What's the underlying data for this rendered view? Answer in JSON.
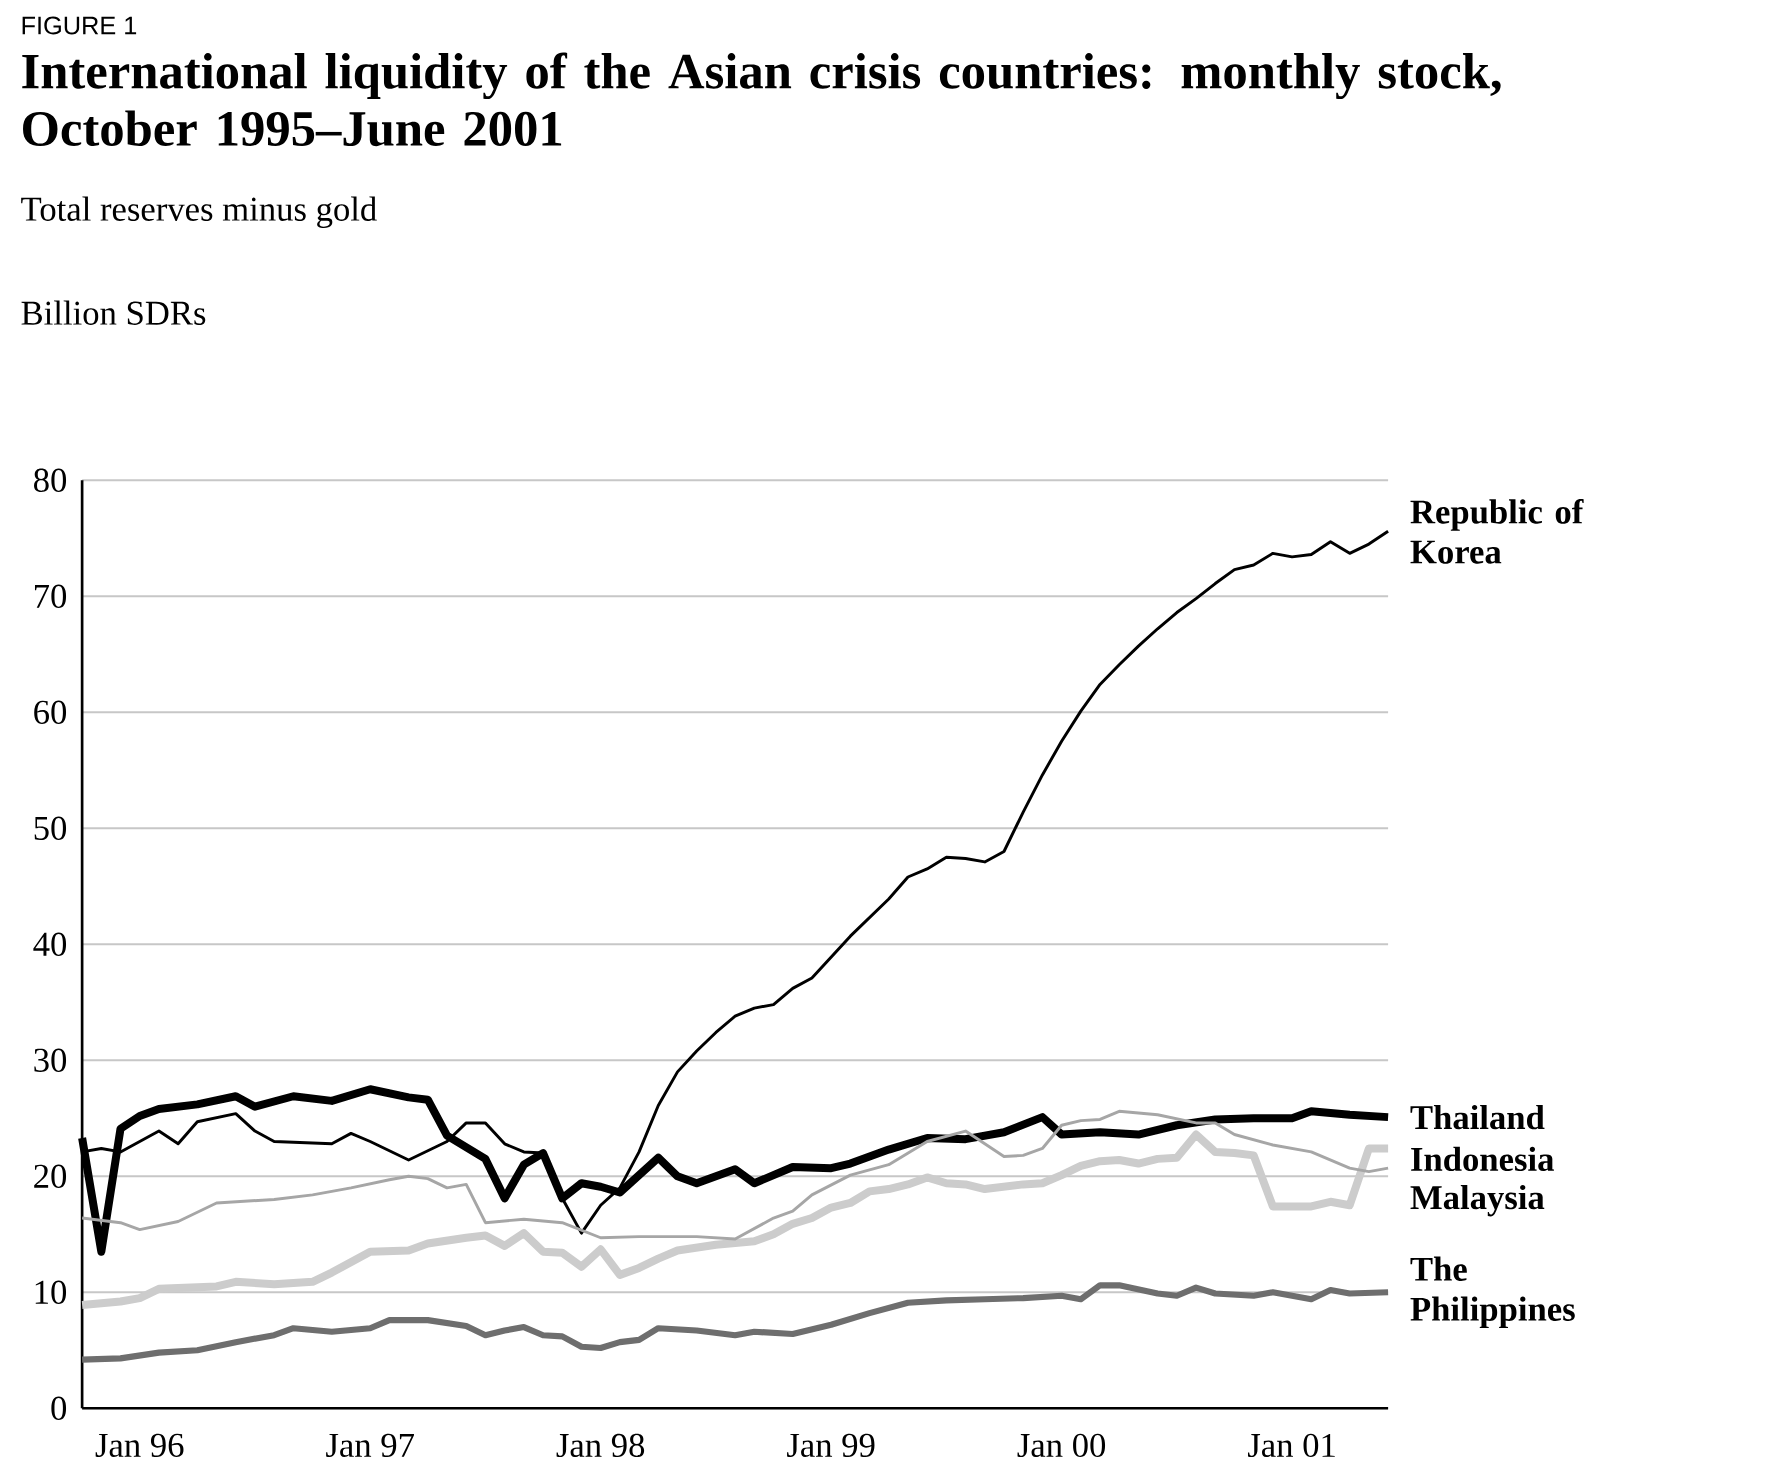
{
  "chart_data": {
    "type": "line",
    "title": "International liquidity of the Asian crisis countries: monthly stock, October 1995–June 2001",
    "subtitle": "Total reserves minus gold",
    "ylabel": "Billion SDRs",
    "annotations": [
      "FIGURE 1"
    ],
    "xlim": [
      "1995-10",
      "2001-06"
    ],
    "xticks": [
      {
        "value": "1996-01",
        "label": "Jan 96"
      },
      {
        "value": "1997-01",
        "label": "Jan 97"
      },
      {
        "value": "1998-01",
        "label": "Jan 98"
      },
      {
        "value": "1999-01",
        "label": "Jan 99"
      },
      {
        "value": "2000-01",
        "label": "Jan 00"
      },
      {
        "value": "2001-01",
        "label": "Jan 01"
      }
    ],
    "ylim": [
      0,
      80
    ],
    "yticks": [
      0,
      10,
      20,
      30,
      40,
      50,
      60,
      70,
      80
    ],
    "grid": "y",
    "series": [
      {
        "name": "Republic of Korea",
        "color": "#000000",
        "x": [
          "1995-10",
          "1995-11",
          "1995-12",
          "1996-02",
          "1996-03",
          "1996-04",
          "1996-06",
          "1996-07",
          "1996-08",
          "1996-11",
          "1996-12",
          "1997-01",
          "1997-03",
          "1997-05",
          "1997-06",
          "1997-07",
          "1997-08",
          "1997-09",
          "1997-10",
          "1997-11",
          "1997-12",
          "1998-01",
          "1998-02",
          "1998-03",
          "1998-04",
          "1998-05",
          "1998-06",
          "1998-07",
          "1998-08",
          "1998-09",
          "1998-10",
          "1998-11",
          "1998-12",
          "1999-01",
          "1999-02",
          "1999-03",
          "1999-04",
          "1999-05",
          "1999-06",
          "1999-07",
          "1999-08",
          "1999-09",
          "1999-10",
          "1999-11",
          "1999-12",
          "2000-01",
          "2000-02",
          "2000-03",
          "2000-04",
          "2000-05",
          "2000-06",
          "2000-07",
          "2000-08",
          "2000-09",
          "2000-10",
          "2000-11",
          "2000-12",
          "2001-01",
          "2001-02",
          "2001-03",
          "2001-04",
          "2001-05",
          "2001-06"
        ],
        "values": [
          22.1,
          22.4,
          22.1,
          23.9,
          22.8,
          24.7,
          25.4,
          23.9,
          23.0,
          22.8,
          23.7,
          23.0,
          21.4,
          23.0,
          24.6,
          24.6,
          22.8,
          22.1,
          22.0,
          18.1,
          15.1,
          17.5,
          19.0,
          22.1,
          26.1,
          29.0,
          30.8,
          32.4,
          33.8,
          34.5,
          34.8,
          36.2,
          37.1,
          38.9,
          40.7,
          42.3,
          43.9,
          45.8,
          46.5,
          47.5,
          47.4,
          47.1,
          48.0,
          51.4,
          54.6,
          57.5,
          60.1,
          62.4,
          64.1,
          65.7,
          67.2,
          68.6,
          69.8,
          71.1,
          72.3,
          72.7,
          73.7,
          73.4,
          73.6,
          74.7,
          73.7,
          74.5,
          75.6
        ]
      },
      {
        "name": "Thailand",
        "color": "#000000",
        "x": [
          "1995-10",
          "1995-11",
          "1995-12",
          "1996-01",
          "1996-02",
          "1996-04",
          "1996-06",
          "1996-07",
          "1996-09",
          "1996-11",
          "1997-01",
          "1997-03",
          "1997-04",
          "1997-05",
          "1997-07",
          "1997-08",
          "1997-09",
          "1997-10",
          "1997-11",
          "1997-12",
          "1998-01",
          "1998-02",
          "1998-04",
          "1998-05",
          "1998-06",
          "1998-08",
          "1998-09",
          "1998-11",
          "1999-01",
          "1999-02",
          "1999-04",
          "1999-06",
          "1999-08",
          "1999-10",
          "1999-12",
          "2000-01",
          "2000-03",
          "2000-05",
          "2000-07",
          "2000-09",
          "2000-11",
          "2001-01",
          "2001-02",
          "2001-04",
          "2001-06"
        ],
        "values": [
          23.3,
          13.5,
          24.1,
          25.2,
          25.8,
          26.2,
          26.9,
          26.0,
          26.9,
          26.5,
          27.5,
          26.8,
          26.6,
          23.5,
          21.5,
          18.1,
          21.0,
          22.0,
          18.1,
          19.4,
          19.1,
          18.6,
          21.6,
          20.0,
          19.4,
          20.6,
          19.4,
          20.8,
          20.7,
          21.1,
          22.3,
          23.3,
          23.2,
          23.8,
          25.1,
          23.6,
          23.8,
          23.6,
          24.4,
          24.9,
          25.0,
          25.0,
          25.6,
          25.3,
          25.1
        ]
      },
      {
        "name": "Indonesia",
        "color": "#cccccc",
        "x": [
          "1995-10",
          "1995-12",
          "1996-01",
          "1996-02",
          "1996-05",
          "1996-06",
          "1996-08",
          "1996-10",
          "1996-11",
          "1997-01",
          "1997-03",
          "1997-04",
          "1997-06",
          "1997-07",
          "1997-08",
          "1997-09",
          "1997-10",
          "1997-11",
          "1997-12",
          "1998-01",
          "1998-02",
          "1998-03",
          "1998-04",
          "1998-05",
          "1998-07",
          "1998-09",
          "1998-10",
          "1998-11",
          "1998-12",
          "1999-01",
          "1999-02",
          "1999-03",
          "1999-04",
          "1999-05",
          "1999-06",
          "1999-07",
          "1999-08",
          "1999-09",
          "1999-10",
          "1999-11",
          "1999-12",
          "2000-01",
          "2000-02",
          "2000-03",
          "2000-04",
          "2000-05",
          "2000-06",
          "2000-07",
          "2000-08",
          "2000-09",
          "2000-10",
          "2000-11",
          "2000-12",
          "2001-01",
          "2001-02",
          "2001-03",
          "2001-04",
          "2001-05",
          "2001-06"
        ],
        "values": [
          8.9,
          9.2,
          9.5,
          10.3,
          10.5,
          10.9,
          10.7,
          10.9,
          11.7,
          13.5,
          13.6,
          14.2,
          14.7,
          14.9,
          14.0,
          15.1,
          13.5,
          13.4,
          12.2,
          13.7,
          11.5,
          12.1,
          12.9,
          13.6,
          14.1,
          14.4,
          15.0,
          15.9,
          16.4,
          17.3,
          17.7,
          18.7,
          18.9,
          19.3,
          19.9,
          19.4,
          19.3,
          18.9,
          19.1,
          19.3,
          19.4,
          20.1,
          20.9,
          21.3,
          21.4,
          21.1,
          21.5,
          21.6,
          23.6,
          22.1,
          22.0,
          21.8,
          17.4,
          17.4,
          17.4,
          17.8,
          17.5,
          22.4,
          22.4
        ]
      },
      {
        "name": "Malaysia",
        "color": "#a6a6a6",
        "x": [
          "1995-10",
          "1995-12",
          "1996-01",
          "1996-03",
          "1996-05",
          "1996-08",
          "1996-10",
          "1996-12",
          "1997-02",
          "1997-03",
          "1997-04",
          "1997-05",
          "1997-06",
          "1997-07",
          "1997-09",
          "1997-11",
          "1998-01",
          "1998-03",
          "1998-06",
          "1998-08",
          "1998-10",
          "1998-11",
          "1998-12",
          "1999-02",
          "1999-04",
          "1999-06",
          "1999-08",
          "1999-10",
          "1999-11",
          "1999-12",
          "2000-01",
          "2000-02",
          "2000-03",
          "2000-04",
          "2000-06",
          "2000-08",
          "2000-09",
          "2000-10",
          "2000-12",
          "2001-01",
          "2001-02",
          "2001-04",
          "2001-05",
          "2001-06"
        ],
        "values": [
          16.4,
          16.0,
          15.4,
          16.1,
          17.7,
          18.0,
          18.4,
          19.0,
          19.7,
          20.0,
          19.8,
          19.0,
          19.3,
          16.0,
          16.3,
          16.0,
          14.7,
          14.8,
          14.8,
          14.6,
          16.4,
          17.0,
          18.4,
          20.1,
          21.0,
          23.0,
          23.9,
          21.7,
          21.8,
          22.4,
          24.4,
          24.8,
          24.9,
          25.6,
          25.3,
          24.6,
          24.6,
          23.6,
          22.7,
          22.4,
          22.1,
          20.7,
          20.4,
          20.7
        ]
      },
      {
        "name": "The Philippines",
        "color": "#6e6e6e",
        "x": [
          "1995-10",
          "1995-12",
          "1996-02",
          "1996-04",
          "1996-06",
          "1996-08",
          "1996-09",
          "1996-11",
          "1997-01",
          "1997-02",
          "1997-04",
          "1997-06",
          "1997-07",
          "1997-08",
          "1997-09",
          "1997-10",
          "1997-11",
          "1997-12",
          "1998-01",
          "1998-02",
          "1998-03",
          "1998-04",
          "1998-06",
          "1998-08",
          "1998-09",
          "1998-11",
          "1999-01",
          "1999-03",
          "1999-05",
          "1999-07",
          "1999-09",
          "1999-11",
          "2000-01",
          "2000-02",
          "2000-03",
          "2000-04",
          "2000-06",
          "2000-07",
          "2000-08",
          "2000-09",
          "2000-11",
          "2000-12",
          "2001-02",
          "2001-03",
          "2001-04",
          "2001-06"
        ],
        "values": [
          4.2,
          4.3,
          4.8,
          5.0,
          5.7,
          6.3,
          6.9,
          6.6,
          6.9,
          7.6,
          7.6,
          7.1,
          6.3,
          6.7,
          7.0,
          6.3,
          6.2,
          5.3,
          5.2,
          5.7,
          5.9,
          6.9,
          6.7,
          6.3,
          6.6,
          6.4,
          7.2,
          8.2,
          9.1,
          9.3,
          9.4,
          9.5,
          9.7,
          9.4,
          10.6,
          10.6,
          9.9,
          9.7,
          10.4,
          9.9,
          9.7,
          10.0,
          9.4,
          10.2,
          9.9,
          10.0
        ]
      }
    ]
  }
}
